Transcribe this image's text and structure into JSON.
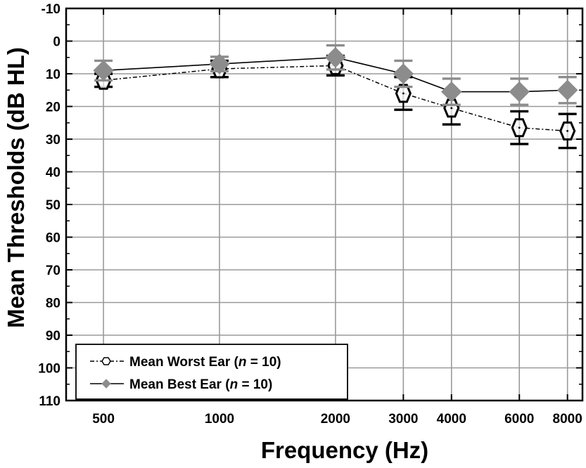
{
  "chart_data": {
    "type": "line",
    "xlabel": "Frequency (Hz)",
    "ylabel": "Mean Thresholds (dB HL)",
    "y_axis_inverted": true,
    "ylim": [
      -10,
      110
    ],
    "y_ticks": [
      "-10",
      "0",
      "10",
      "20",
      "30",
      "40",
      "50",
      "60",
      "70",
      "80",
      "90",
      "100",
      "110"
    ],
    "x_scale": "log",
    "categories": [
      "500",
      "1000",
      "2000",
      "3000",
      "4000",
      "6000",
      "8000"
    ],
    "grid": true,
    "legend_position": "bottom-left",
    "series": [
      {
        "name": "Mean Worst Ear",
        "legend_n_label": "n",
        "legend_n_value": "= 10)",
        "line_style": "dash-dot",
        "marker": "open-hexagon",
        "color": "#000000",
        "values": [
          12,
          8.5,
          7.5,
          16,
          20.5,
          26.5,
          27.5
        ],
        "error": [
          2,
          2.5,
          3,
          5,
          5,
          5,
          5.2
        ]
      },
      {
        "name": "Mean Best Ear",
        "legend_n_label": "n",
        "legend_n_value": "= 10)",
        "line_style": "solid",
        "marker": "filled-diamond",
        "color": "#8c8c8c",
        "values": [
          9,
          7,
          5,
          10,
          15.5,
          15.5,
          15
        ],
        "error": [
          3,
          2.2,
          3.7,
          4,
          4,
          4,
          4
        ]
      }
    ]
  }
}
